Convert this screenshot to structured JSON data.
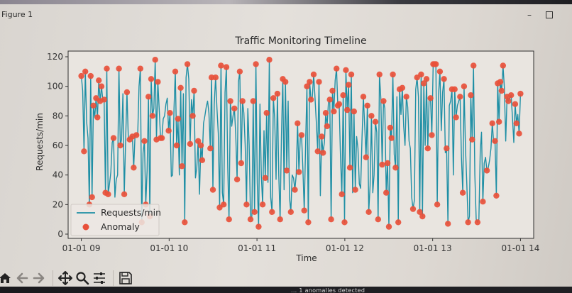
{
  "window": {
    "title": "Figure 1",
    "minimize_glyph": "–",
    "maximize_glyph": "□"
  },
  "toolbar": {
    "buttons": [
      {
        "name": "home",
        "icon": "home-icon"
      },
      {
        "name": "back",
        "icon": "arrow-left-icon"
      },
      {
        "name": "forward",
        "icon": "arrow-right-icon"
      },
      {
        "name": "pan",
        "icon": "move-icon"
      },
      {
        "name": "zoom",
        "icon": "magnifier-icon"
      },
      {
        "name": "configure-subplots",
        "icon": "sliders-icon"
      },
      {
        "name": "save",
        "icon": "floppy-disk-icon"
      }
    ]
  },
  "taskbar": {
    "text": "... 1 anomalies detected"
  },
  "colors": {
    "line": "#1f8fa5",
    "anomaly": "#e8503a",
    "axes_bg": "#e9e5e0",
    "text": "#333333"
  },
  "chart_data": {
    "type": "line",
    "title": "Traffic Monitoring Timeline",
    "xlabel": "Time",
    "ylabel": "Requests/min",
    "ylim": [
      0,
      120
    ],
    "yticks": [
      0,
      20,
      40,
      60,
      80,
      100,
      120
    ],
    "xticks": [
      "01-01 09",
      "01-01 10",
      "01-01 11",
      "01-01 12",
      "01-01 13",
      "01-01 14"
    ],
    "xrange_hours": [
      8.85,
      14.15
    ],
    "grid": false,
    "legend": {
      "position": "lower left",
      "entries": [
        "Requests/min",
        "Anomaly"
      ]
    },
    "series": [
      {
        "name": "Requests/min",
        "kind": "line",
        "x_start_hour": 9.0,
        "x_step_hours": 0.0167,
        "values": [
          107,
          97,
          56,
          110,
          76,
          65,
          20,
          107,
          25,
          87,
          79,
          92,
          79,
          104,
          90,
          100,
          91,
          91,
          28,
          112,
          27,
          34,
          42,
          62,
          65,
          25,
          37,
          40,
          112,
          60,
          64,
          95,
          27,
          63,
          96,
          65,
          64,
          66,
          66,
          45,
          67,
          67,
          68,
          100,
          112,
          8,
          55,
          63,
          20,
          43,
          93,
          12,
          105,
          80,
          85,
          118,
          64,
          103,
          85,
          65,
          65,
          78,
          80,
          88,
          92,
          70,
          82,
          39,
          40,
          85,
          110,
          60,
          78,
          40,
          99,
          46,
          95,
          8,
          106,
          115,
          105,
          61,
          91,
          80,
          97,
          38,
          45,
          63,
          27,
          60,
          50,
          75,
          80,
          86,
          90,
          82,
          58,
          106,
          30,
          88,
          106,
          85,
          68,
          18,
          114,
          28,
          20,
          96,
          113,
          45,
          10,
          90,
          73,
          80,
          85,
          67,
          37,
          103,
          110,
          48,
          90,
          82,
          60,
          20,
          85,
          60,
          10,
          12,
          90,
          15,
          115,
          35,
          5,
          88,
          40,
          20,
          70,
          38,
          82,
          35,
          118,
          25,
          15,
          92,
          78,
          37,
          95,
          40,
          10,
          67,
          105,
          30,
          103,
          43,
          90,
          25,
          15,
          40,
          38,
          30,
          40,
          75,
          42,
          65,
          67,
          44,
          16,
          60,
          100,
          8,
          103,
          91,
          93,
          108,
          92,
          75,
          56,
          103,
          26,
          66,
          55,
          62,
          82,
          73,
          89,
          91,
          10,
          97,
          83,
          104,
          112,
          87,
          88,
          52,
          27,
          94,
          8,
          111,
          84,
          101,
          45,
          108,
          28,
          83,
          30,
          66,
          58,
          34,
          31,
          65,
          93,
          73,
          52,
          87,
          15,
          33,
          80,
          28,
          40,
          76,
          69,
          10,
          108,
          92,
          47,
          90,
          85,
          28,
          48,
          5,
          72,
          65,
          108,
          54,
          45,
          93,
          8,
          98,
          81,
          99,
          73,
          60,
          93,
          86,
          63,
          58,
          25,
          17,
          23,
          98,
          106,
          93,
          15,
          108,
          12,
          102,
          60,
          105,
          58,
          92,
          92,
          67,
          115,
          115,
          115,
          20,
          95,
          110,
          70,
          96,
          105,
          55,
          58,
          7,
          87,
          90,
          98,
          40,
          98,
          79,
          87,
          90,
          93,
          52,
          28,
          100,
          60,
          35,
          8,
          12,
          94,
          64,
          114,
          40,
          10,
          8,
          10,
          56,
          69,
          22,
          48,
          52,
          43,
          45,
          50,
          58,
          75,
          62,
          63,
          26,
          102,
          76,
          103,
          97,
          114,
          99,
          63,
          93,
          90,
          92,
          94,
          79,
          62,
          88,
          75,
          81,
          68,
          95
        ]
      },
      {
        "name": "Anomaly",
        "kind": "scatter",
        "note": "markers drawn on local extremes of the series (most points flagged)"
      }
    ]
  }
}
